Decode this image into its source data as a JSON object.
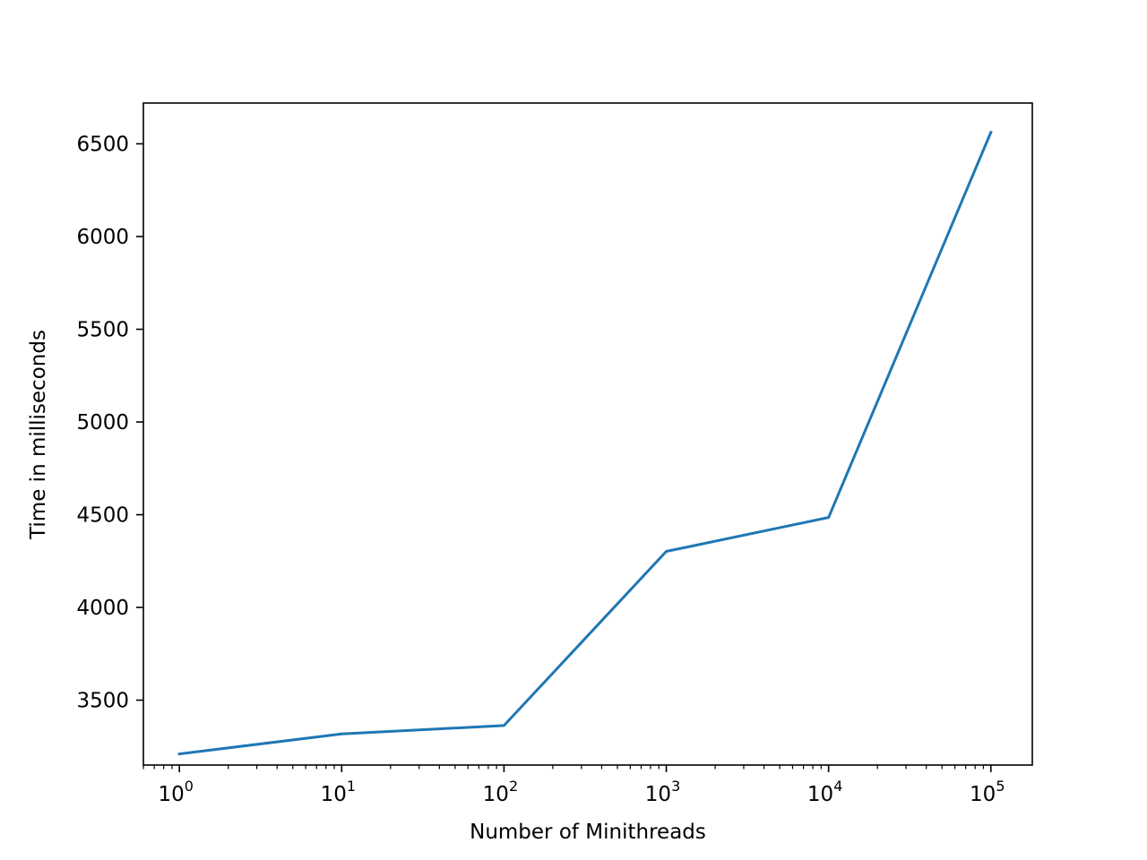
{
  "chart_data": {
    "type": "line",
    "title": "",
    "xlabel": "Number of Minithreads",
    "ylabel": "Time in milliseconds",
    "xscale": "log",
    "xlim": [
      0.6,
      180000
    ],
    "ylim": [
      3150,
      6720
    ],
    "grid": false,
    "x_ticks": [
      {
        "value": 1,
        "base": "10",
        "exp": "0"
      },
      {
        "value": 10,
        "base": "10",
        "exp": "1"
      },
      {
        "value": 100,
        "base": "10",
        "exp": "2"
      },
      {
        "value": 1000,
        "base": "10",
        "exp": "3"
      },
      {
        "value": 10000,
        "base": "10",
        "exp": "4"
      },
      {
        "value": 100000,
        "base": "10",
        "exp": "5"
      }
    ],
    "y_ticks": [
      3500,
      4000,
      4500,
      5000,
      5500,
      6000,
      6500
    ],
    "series": [
      {
        "name": "time",
        "color": "#1f77b4",
        "x": [
          1,
          10,
          100,
          1000,
          10000,
          100000
        ],
        "y": [
          3210,
          3318,
          3363,
          4302,
          4485,
          6562
        ]
      }
    ]
  }
}
